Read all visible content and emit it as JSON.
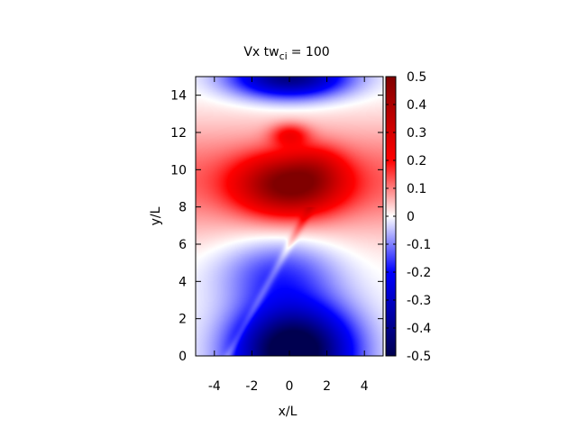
{
  "chart_data": {
    "type": "heatmap",
    "title": "Vx tw",
    "title_subscript": "ci",
    "title_value": "=  100",
    "xlabel": "x/L",
    "ylabel": "y/L",
    "xlim": [
      -5,
      5
    ],
    "ylim": [
      0,
      15
    ],
    "x_ticks": [
      -4,
      -2,
      0,
      2,
      4
    ],
    "y_ticks": [
      0,
      2,
      4,
      6,
      8,
      10,
      12,
      14
    ],
    "colorbar": {
      "min": -0.5,
      "max": 0.5,
      "ticks": [
        "0.5",
        "0.4",
        "0.3",
        "0.2",
        "0.1",
        "0",
        "-0.1",
        "-0.2",
        "-0.3",
        "-0.4",
        "-0.5"
      ],
      "tick_values": [
        0.5,
        0.4,
        0.3,
        0.2,
        0.1,
        0,
        -0.1,
        -0.2,
        -0.3,
        -0.4,
        -0.5
      ],
      "colors": {
        "low": "#000050",
        "mid_low": "#0000ff",
        "zero": "#ffffff",
        "mid_high": "#ff0000",
        "high": "#800000"
      }
    },
    "field_features": [
      {
        "kind": "negative_lobe",
        "x": 0.2,
        "y": 0.6,
        "value": -0.45
      },
      {
        "kind": "positive_lobe",
        "x": 0.0,
        "y": 9.3,
        "value": 0.38
      },
      {
        "kind": "positive_lobe",
        "x": 0.0,
        "y": 11.8,
        "value": 0.2
      },
      {
        "kind": "negative_lobe",
        "x": 0.0,
        "y": 14.7,
        "value": -0.28
      },
      {
        "kind": "zero_band",
        "y": 13.0
      },
      {
        "kind": "zero_band",
        "y": 5.6
      }
    ],
    "grid": false,
    "legend": "none"
  }
}
